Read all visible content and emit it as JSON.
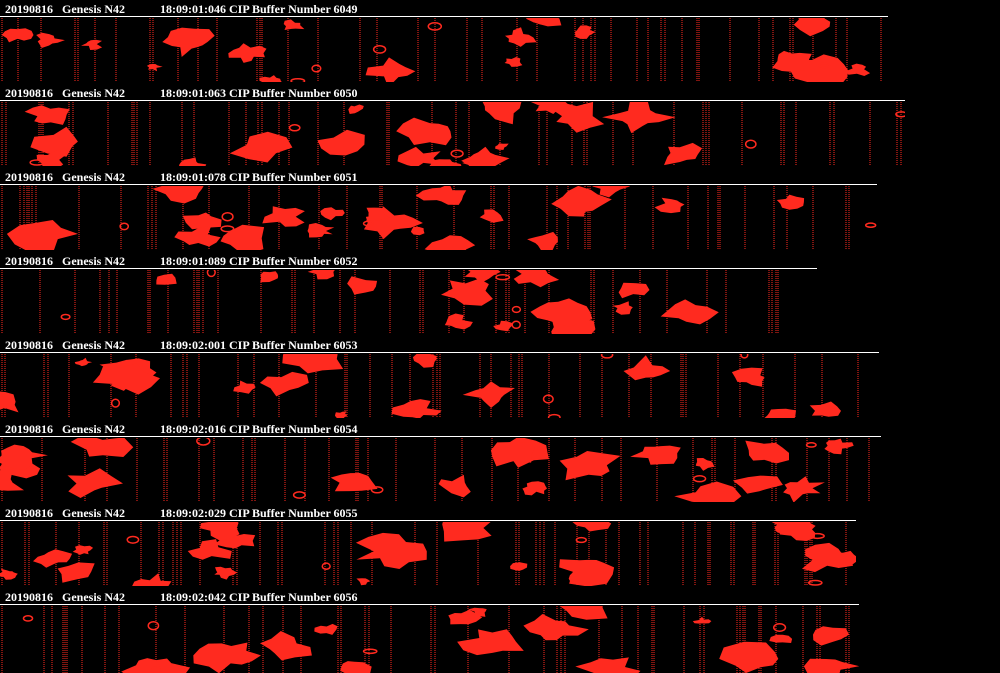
{
  "colors": {
    "background": "#000000",
    "text": "#ffffff",
    "defect": "#ff2a1f"
  },
  "frames": [
    {
      "date": "20190816",
      "camera": "Genesis N42",
      "timestamp": "18:09:01:046",
      "buffer_label": "CIP Buffer Number 6049"
    },
    {
      "date": "20190816",
      "camera": "Genesis N42",
      "timestamp": "18:09:01:063",
      "buffer_label": "CIP Buffer Number 6050"
    },
    {
      "date": "20190816",
      "camera": "Genesis N42",
      "timestamp": "18:09:01:078",
      "buffer_label": "CIP Buffer Number 6051"
    },
    {
      "date": "20190816",
      "camera": "Genesis N42",
      "timestamp": "18:09:01:089",
      "buffer_label": "CIP Buffer Number 6052"
    },
    {
      "date": "20190816",
      "camera": "Genesis N42",
      "timestamp": "18:09:02:001",
      "buffer_label": "CIP Buffer Number 6053"
    },
    {
      "date": "20190816",
      "camera": "Genesis N42",
      "timestamp": "18:09:02:016",
      "buffer_label": "CIP Buffer Number 6054"
    },
    {
      "date": "20190816",
      "camera": "Genesis N42",
      "timestamp": "18:09:02:029",
      "buffer_label": "CIP Buffer Number 6055"
    },
    {
      "date": "20190816",
      "camera": "Genesis N42",
      "timestamp": "18:09:02:042",
      "buffer_label": "CIP Buffer Number 6056"
    }
  ]
}
